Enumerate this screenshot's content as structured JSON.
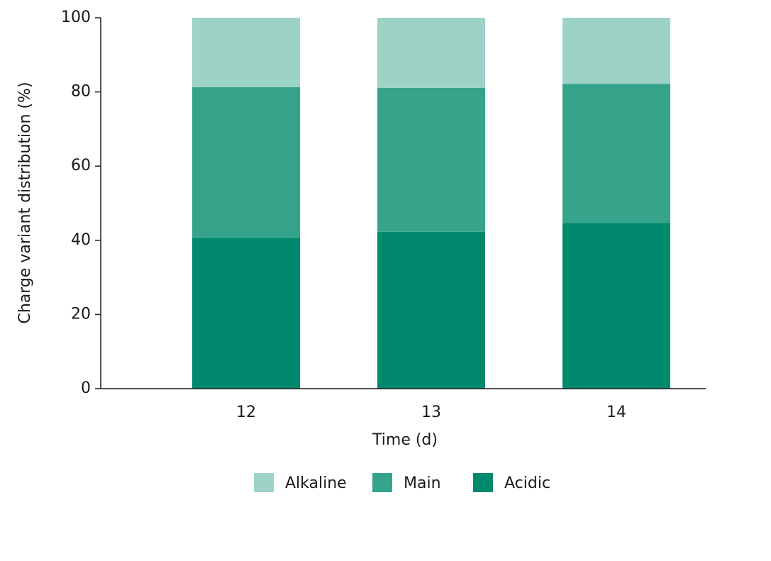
{
  "chart_data": {
    "type": "stacked_bar",
    "x_label": "Time (d)",
    "y_label": "Charge variant distribution (%)",
    "categories": [
      "12",
      "13",
      "14"
    ],
    "series": [
      {
        "name": "Alkaline",
        "color": "#9dd2c7",
        "values": [
          18.7,
          18.9,
          17.8
        ]
      },
      {
        "name": "Main",
        "color": "#36a38b",
        "values": [
          40.6,
          38.8,
          37.5
        ]
      },
      {
        "name": "Acidic",
        "color": "#00896d",
        "values": [
          40.7,
          42.3,
          44.7
        ]
      }
    ],
    "ylim": [
      0,
      100
    ],
    "yticks": [
      0,
      20,
      40,
      60,
      80,
      100
    ],
    "grid": false
  }
}
